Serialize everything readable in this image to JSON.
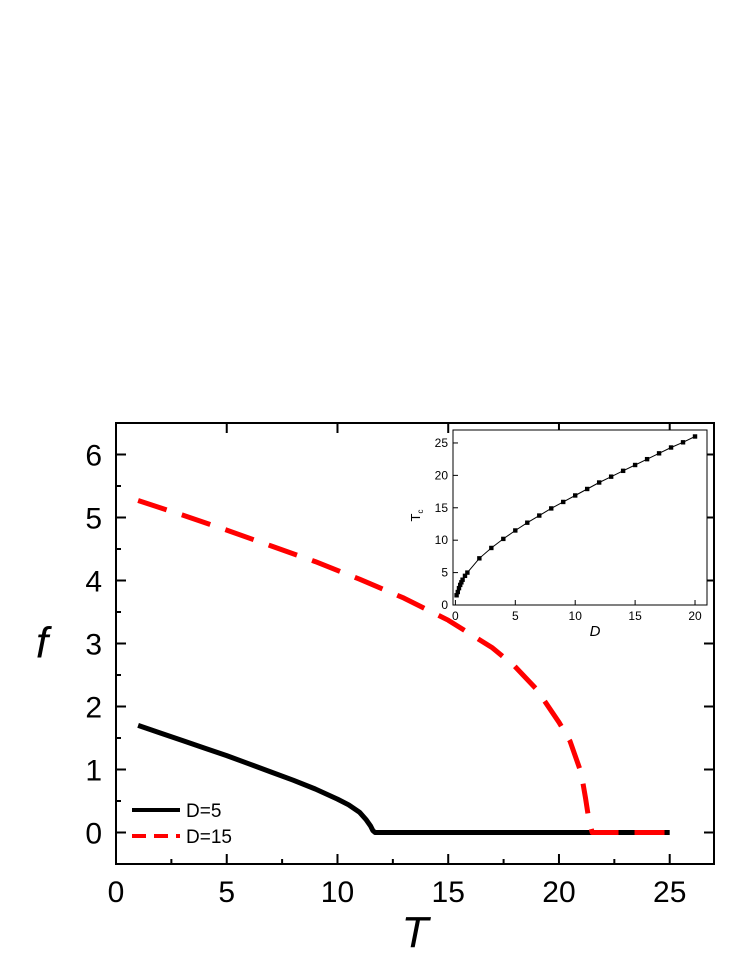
{
  "chart_data": [
    {
      "type": "line",
      "xlabel": "T",
      "ylabel": "f",
      "xlim": [
        0,
        27
      ],
      "ylim": [
        -0.5,
        6.5
      ],
      "xticks": [
        "0",
        "5",
        "10",
        "15",
        "20",
        "25"
      ],
      "yticks": [
        "0",
        "1",
        "2",
        "3",
        "4",
        "5",
        "6"
      ],
      "legend": {
        "placement": "bottom-left"
      },
      "series": [
        {
          "name": "D=5",
          "color": "#000000",
          "style": "solid",
          "x": [
            1,
            2,
            3,
            4,
            5,
            6,
            7,
            8,
            9,
            10,
            10.5,
            11,
            11.3,
            11.5,
            11.6,
            11.7,
            12,
            14,
            16,
            18,
            20,
            22,
            24,
            25
          ],
          "y": [
            1.7,
            1.58,
            1.46,
            1.34,
            1.22,
            1.09,
            0.96,
            0.83,
            0.69,
            0.53,
            0.44,
            0.32,
            0.2,
            0.1,
            0.03,
            0,
            0,
            0,
            0,
            0,
            0,
            0,
            0,
            0
          ]
        },
        {
          "name": "D=15",
          "color": "#ff0000",
          "style": "dashed",
          "x": [
            1,
            3,
            5,
            7,
            9,
            11,
            13,
            15,
            17,
            18,
            19,
            20,
            20.5,
            21,
            21.2,
            21.35,
            21.5,
            22,
            23,
            24,
            25
          ],
          "y": [
            5.27,
            5.04,
            4.8,
            4.55,
            4.3,
            4.02,
            3.72,
            3.37,
            2.93,
            2.64,
            2.27,
            1.75,
            1.45,
            0.95,
            0.55,
            0.2,
            0,
            0,
            0,
            0,
            0
          ]
        }
      ]
    },
    {
      "type": "line",
      "xlabel": "D",
      "ylabel": "Tc",
      "xlim": [
        -0.2,
        21
      ],
      "ylim": [
        0,
        27
      ],
      "xticks": [
        "0",
        "5",
        "10",
        "15",
        "20"
      ],
      "yticks": [
        "0",
        "5",
        "10",
        "15",
        "20",
        "25"
      ],
      "series": [
        {
          "color": "#000000",
          "style": "solid-with-square-markers",
          "x": [
            0.1,
            0.2,
            0.3,
            0.4,
            0.5,
            0.6,
            0.8,
            1,
            2,
            3,
            4,
            5,
            6,
            7,
            8,
            9,
            10,
            11,
            12,
            13,
            14,
            15,
            16,
            17,
            18,
            19,
            20
          ],
          "y": [
            1.5,
            2.0,
            2.6,
            3.1,
            3.5,
            3.9,
            4.5,
            5.0,
            7.2,
            8.8,
            10.2,
            11.5,
            12.7,
            13.8,
            14.9,
            15.9,
            16.9,
            17.9,
            18.9,
            19.8,
            20.7,
            21.6,
            22.5,
            23.4,
            24.3,
            25.1,
            26.0
          ]
        }
      ]
    }
  ]
}
